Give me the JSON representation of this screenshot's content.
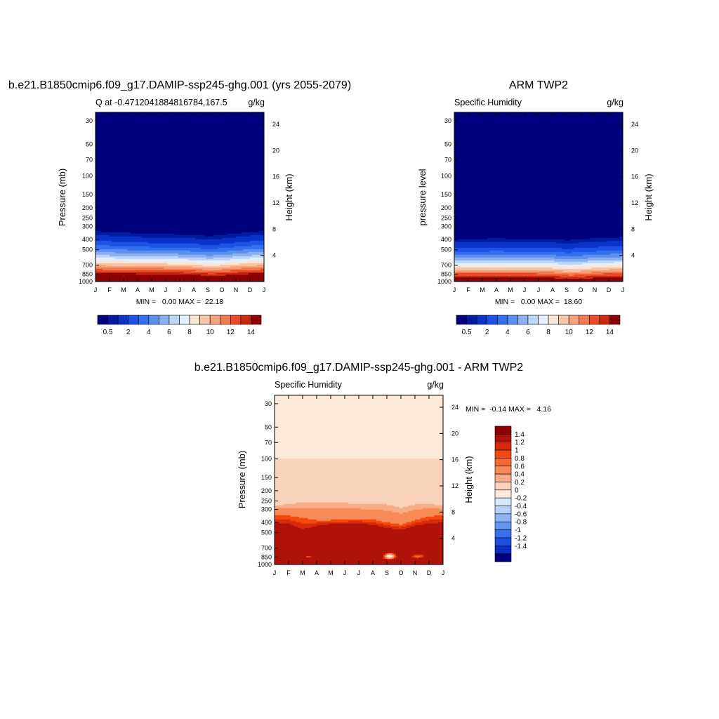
{
  "chart_data": [
    {
      "type": "heatmap",
      "title": "b.e21.B1850cmip6.f09_g17.DAMIP-ssp245-ghg.001 (yrs 2055-2079)",
      "left_subtitle": "Q at -0.4712041884816784,167.5",
      "right_subtitle": "g/kg",
      "ylabel": "Pressure (mb)",
      "y2label": "Height (km)",
      "x_ticks": [
        "J",
        "F",
        "M",
        "A",
        "M",
        "J",
        "J",
        "A",
        "S",
        "O",
        "N",
        "D",
        "J"
      ],
      "y_ticks": [
        30,
        50,
        70,
        100,
        150,
        200,
        250,
        300,
        400,
        500,
        700,
        850,
        1000
      ],
      "y2_ticks": [
        24,
        20,
        16,
        12,
        8,
        4
      ],
      "ylim": [
        1000,
        25
      ],
      "minmax_text": "MIN =   0.00 MAX =  22.18",
      "colorbar_labels": [
        "0.5",
        "2",
        "4",
        "6",
        "8",
        "10",
        "12",
        "14"
      ],
      "colorbar_levels": [
        0.5,
        1,
        2,
        3,
        4,
        5,
        6,
        7,
        8,
        9,
        10,
        11,
        12,
        13,
        14
      ],
      "monthly_moist_top_mb": [
        275,
        280,
        285,
        290,
        295,
        295,
        300,
        300,
        310,
        300,
        290,
        280,
        275
      ],
      "surface_q_gkg": 18.5
    },
    {
      "type": "heatmap",
      "title": "ARM TWP2",
      "left_subtitle": "Specific Humidity",
      "right_subtitle": "g/kg",
      "ylabel": "pressure level",
      "y2label": "Height (km)",
      "x_ticks": [
        "J",
        "F",
        "M",
        "A",
        "M",
        "J",
        "J",
        "A",
        "S",
        "O",
        "N",
        "D",
        "J"
      ],
      "y_ticks": [
        30,
        50,
        70,
        100,
        150,
        200,
        250,
        300,
        400,
        500,
        700,
        850,
        1000
      ],
      "y2_ticks": [
        24,
        20,
        16,
        12,
        8,
        4
      ],
      "ylim": [
        1000,
        25
      ],
      "minmax_text": "MIN =   0.00 MAX =  18.60",
      "colorbar_labels": [
        "0.5",
        "2",
        "4",
        "6",
        "8",
        "10",
        "12",
        "14"
      ],
      "colorbar_levels": [
        0.5,
        1,
        2,
        3,
        4,
        5,
        6,
        7,
        8,
        9,
        10,
        11,
        12,
        13,
        14
      ],
      "monthly_moist_top_mb": [
        330,
        330,
        330,
        325,
        330,
        330,
        330,
        330,
        340,
        330,
        325,
        320,
        315
      ],
      "surface_q_gkg": 16.5
    },
    {
      "type": "heatmap",
      "title": "b.e21.B1850cmip6.f09_g17.DAMIP-ssp245-ghg.001 - ARM TWP2",
      "left_subtitle": "Specific Humidity",
      "right_subtitle": "g/kg",
      "ylabel": "Pressure (mb)",
      "y2label": "Height (km)",
      "x_ticks": [
        "J",
        "F",
        "M",
        "A",
        "M",
        "J",
        "J",
        "A",
        "S",
        "O",
        "N",
        "D",
        "J"
      ],
      "y_ticks": [
        30,
        50,
        70,
        100,
        150,
        200,
        250,
        300,
        400,
        500,
        700,
        850,
        1000
      ],
      "y2_ticks": [
        24,
        20,
        16,
        12,
        8,
        4
      ],
      "ylim": [
        1000,
        25
      ],
      "minmax_text": "MIN =  -0.14 MAX =   4.16",
      "colorbar_labels": [
        "1.4",
        "1.2",
        "1",
        "0.8",
        "0.6",
        "0.4",
        "0.2",
        "0",
        "-0.2",
        "-0.4",
        "-0.6",
        "-0.8",
        "-1",
        "-1.2",
        "-1.4"
      ],
      "colorbar_levels": [
        -1.4,
        -1.2,
        -1,
        -0.8,
        -0.6,
        -0.4,
        -0.2,
        0,
        0.2,
        0.4,
        0.6,
        0.8,
        1,
        1.2,
        1.4
      ]
    }
  ],
  "palettes": {
    "abs": [
      "#00007e",
      "#001ba0",
      "#0a33c8",
      "#1c52e6",
      "#3470ed",
      "#5a91f0",
      "#89b1f4",
      "#bcd5fa",
      "#e5f0fd",
      "#fbe6d5",
      "#f9c5a9",
      "#f6a27c",
      "#f27a50",
      "#e94b26",
      "#cc2a0d",
      "#8c0000"
    ],
    "diff": [
      "#8c0000",
      "#b0120a",
      "#d62a0a",
      "#f2490c",
      "#f76a2f",
      "#f88b58",
      "#f9ac88",
      "#f9d4bb",
      "#fdeadb",
      "#daeafd",
      "#b5d1fb",
      "#8db5f6",
      "#6295f0",
      "#3a70ec",
      "#1d4fe0",
      "#0a2fc0",
      "#00007e"
    ]
  }
}
